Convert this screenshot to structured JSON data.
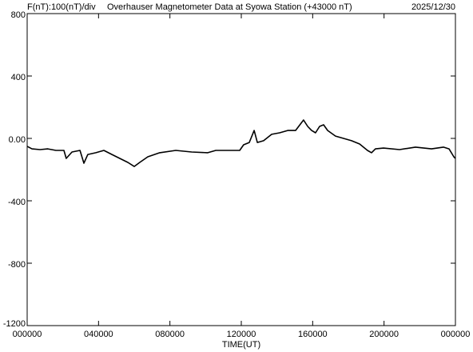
{
  "chart_data": {
    "type": "line",
    "scale_label": "F(nT):100(nT)/div",
    "title": "Overhauser Magnetometer Data at Syowa Station (+43000 nT)",
    "date": "2025/12/30",
    "x_label": "TIME(UT)",
    "xlim": [
      0,
      24
    ],
    "xticks": [
      {
        "value": 0,
        "label": "000000"
      },
      {
        "value": 4,
        "label": "040000"
      },
      {
        "value": 8,
        "label": "080000"
      },
      {
        "value": 12,
        "label": "120000"
      },
      {
        "value": 16,
        "label": "160000"
      },
      {
        "value": 20,
        "label": "200000"
      },
      {
        "value": 24,
        "label": "000000"
      }
    ],
    "ylim": [
      -1200,
      800
    ],
    "yticks": [
      -1200,
      -800,
      -400,
      {
        "value": 0,
        "label": "0.00"
      },
      400,
      800
    ],
    "x": [
      0,
      0.27,
      0.72,
      1.16,
      1.61,
      2.06,
      2.19,
      2.51,
      2.96,
      3.18,
      3.4,
      3.85,
      4.3,
      4.75,
      5.19,
      5.64,
      6.0,
      6.31,
      6.76,
      7.43,
      8.33,
      9.22,
      10.12,
      10.57,
      11.46,
      11.91,
      12.13,
      12.45,
      12.72,
      12.9,
      13.25,
      13.7,
      14.15,
      14.6,
      15.04,
      15.49,
      15.72,
      15.94,
      16.16,
      16.39,
      16.61,
      16.84,
      17.28,
      17.73,
      18.18,
      18.63,
      19.07,
      19.3,
      19.52,
      19.97,
      20.87,
      21.76,
      22.66,
      23.33,
      23.64,
      23.91,
      24.0
    ],
    "series": [
      {
        "name": "F",
        "color": "#000000",
        "values": [
          -51,
          -67,
          -72,
          -67,
          -77,
          -77,
          -128,
          -87,
          -77,
          -159,
          -103,
          -92,
          -77,
          -103,
          -128,
          -154,
          -180,
          -154,
          -118,
          -92,
          -77,
          -87,
          -92,
          -77,
          -77,
          -77,
          -41,
          -26,
          51,
          -26,
          -15,
          26,
          36,
          51,
          51,
          118,
          77,
          51,
          36,
          77,
          87,
          51,
          15,
          0,
          -15,
          -36,
          -77,
          -92,
          -67,
          -62,
          -72,
          -56,
          -67,
          -56,
          -67,
          -118,
          -128
        ]
      }
    ]
  }
}
